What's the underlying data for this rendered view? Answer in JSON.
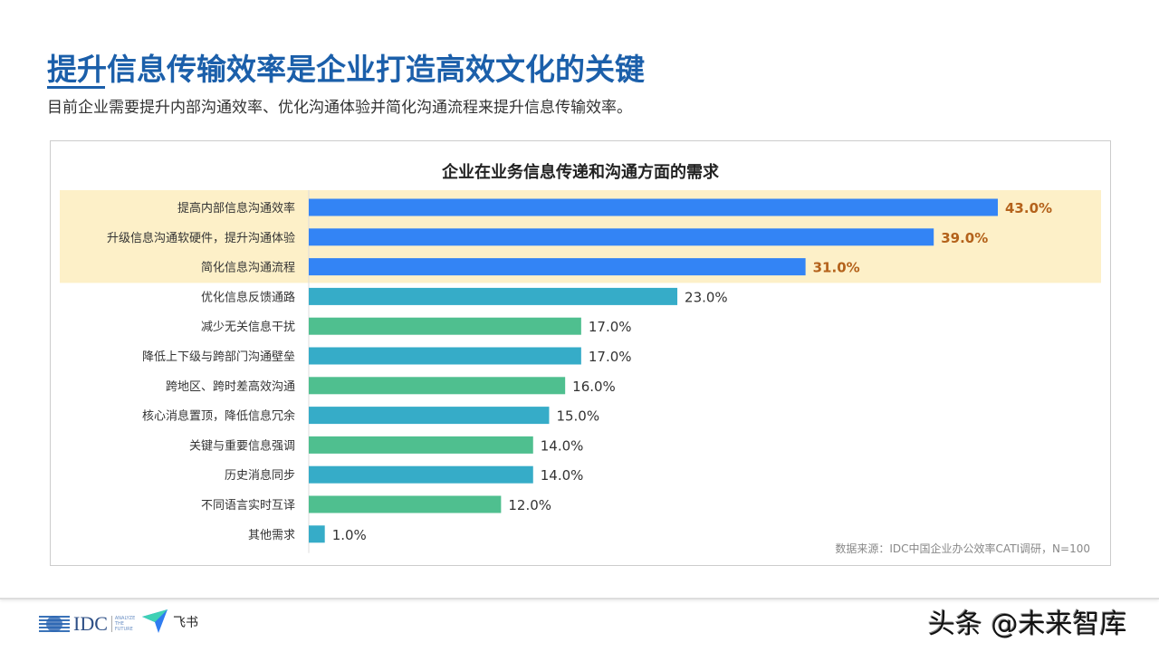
{
  "title": "提升信息传输效率是企业打造高效文化的关键",
  "subtitle": "目前企业需要提升内部沟通效率、优化沟通体验并简化沟通流程来提升信息传输效率。",
  "source": "数据来源：IDC中国企业办公效率CATI调研，N=100",
  "footer": {
    "idc_logo": "IDC",
    "idc_tagline": "ANALYZE THE FUTURE",
    "feishu": "飞书"
  },
  "watermark": "头条 @未来智库",
  "colors": {
    "blue": "#3384f5",
    "teal": "#36acc8",
    "green": "#4fbf8f",
    "highlight_bg": "#fdf0c8",
    "highlight_label": "#b4621b",
    "title": "#1b5faa"
  },
  "chart_data": {
    "type": "bar",
    "orientation": "horizontal",
    "title": "企业在业务信息传递和沟通方面的需求",
    "categories": [
      "提高内部信息沟通效率",
      "升级信息沟通软硬件，提升沟通体验",
      "简化信息沟通流程",
      "优化信息反馈通路",
      "减少无关信息干扰",
      "降低上下级与跨部门沟通壁垒",
      "跨地区、跨时差高效沟通",
      "核心消息置顶，降低信息冗余",
      "关键与重要信息强调",
      "历史消息同步",
      "不同语言实时互译",
      "其他需求"
    ],
    "values": [
      43.0,
      39.0,
      31.0,
      23.0,
      17.0,
      17.0,
      16.0,
      15.0,
      14.0,
      14.0,
      12.0,
      1.0
    ],
    "unit": "%",
    "highlighted": [
      0,
      1,
      2
    ],
    "bar_colors": [
      "blue",
      "blue",
      "blue",
      "teal",
      "green",
      "teal",
      "green",
      "teal",
      "green",
      "teal",
      "green",
      "teal"
    ],
    "xlim": [
      0,
      43
    ]
  }
}
